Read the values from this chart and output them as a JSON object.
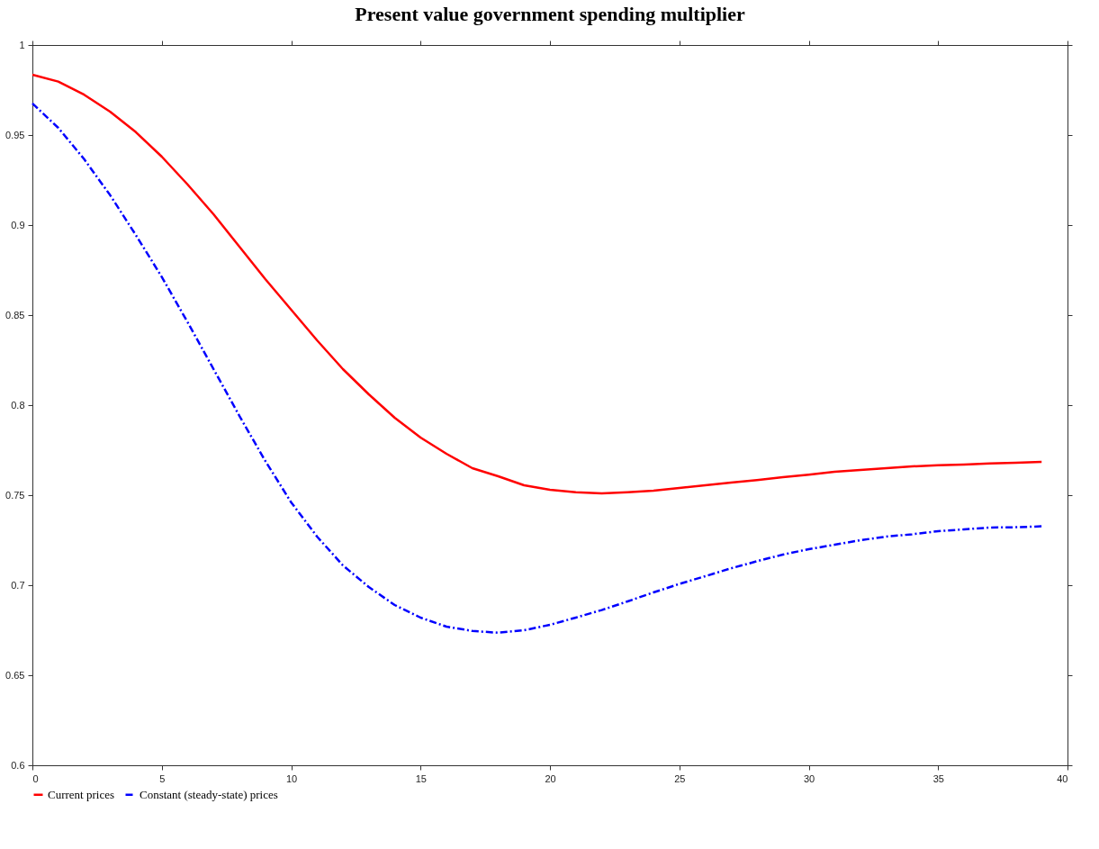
{
  "chart_data": {
    "type": "line",
    "title": "Present value government spending multiplier",
    "x": [
      0,
      1,
      2,
      3,
      4,
      5,
      6,
      7,
      8,
      9,
      10,
      11,
      12,
      13,
      14,
      15,
      16,
      17,
      18,
      19,
      20,
      21,
      22,
      23,
      24,
      25,
      26,
      27,
      28,
      29,
      30,
      31,
      32,
      33,
      34,
      35,
      36,
      37,
      38,
      39
    ],
    "series": [
      {
        "name": "Current prices",
        "color": "#ff0000",
        "line_style": "solid",
        "values": [
          0.9835,
          0.9797,
          0.9724,
          0.963,
          0.9516,
          0.938,
          0.9225,
          0.906,
          0.888,
          0.87,
          0.853,
          0.836,
          0.82,
          0.806,
          0.793,
          0.782,
          0.773,
          0.765,
          0.7605,
          0.7555,
          0.753,
          0.7516,
          0.751,
          0.7516,
          0.7525,
          0.754,
          0.7555,
          0.757,
          0.7584,
          0.76,
          0.7614,
          0.763,
          0.764,
          0.765,
          0.766,
          0.7666,
          0.767,
          0.7676,
          0.768,
          0.7685
        ]
      },
      {
        "name": "Constant (steady-state) prices",
        "color": "#0000ff",
        "line_style": "dashed",
        "values": [
          0.9676,
          0.954,
          0.9366,
          0.9167,
          0.8944,
          0.8712,
          0.846,
          0.82,
          0.794,
          0.769,
          0.746,
          0.727,
          0.711,
          0.699,
          0.689,
          0.682,
          0.677,
          0.6746,
          0.6736,
          0.675,
          0.678,
          0.682,
          0.6862,
          0.691,
          0.696,
          0.7007,
          0.705,
          0.7094,
          0.7133,
          0.717,
          0.72,
          0.7225,
          0.725,
          0.727,
          0.7283,
          0.73,
          0.731,
          0.732,
          0.7322,
          0.7327
        ]
      }
    ],
    "xlim": [
      0,
      40
    ],
    "xticks": [
      0,
      5,
      10,
      15,
      20,
      25,
      30,
      35,
      40
    ],
    "ylim": [
      0.6,
      1
    ],
    "yticks": [
      0.6,
      0.65,
      0.7,
      0.75,
      0.8,
      0.85,
      0.9,
      0.95,
      1
    ],
    "grid": false,
    "legend": "bottom",
    "marker": "none"
  }
}
